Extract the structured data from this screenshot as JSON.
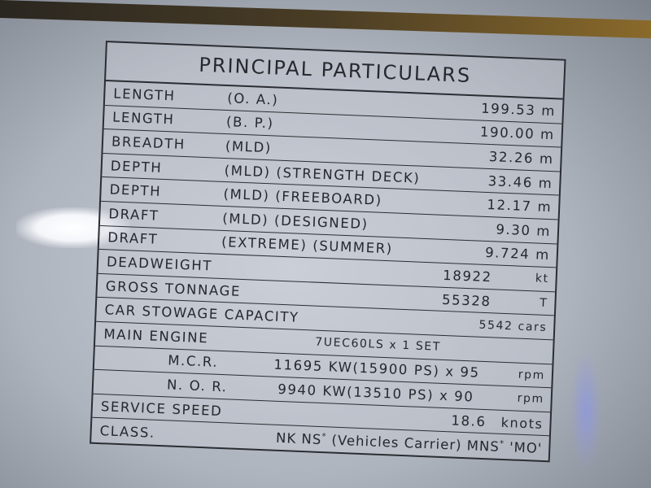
{
  "title": "PRINCIPAL PARTICULARS",
  "rows": [
    {
      "label": "LENGTH",
      "qualifier": "(O. A.)",
      "value": "199.53 m"
    },
    {
      "label": "LENGTH",
      "qualifier": "(B. P.)",
      "value": "190.00 m"
    },
    {
      "label": "BREADTH",
      "qualifier": "(MLD)",
      "value": "32.26 m"
    },
    {
      "label": "DEPTH",
      "qualifier": "(MLD) (STRENGTH DECK)",
      "value": "33.46 m"
    },
    {
      "label": "DEPTH",
      "qualifier": "(MLD) (FREEBOARD)",
      "value": "12.17 m"
    },
    {
      "label": "DRAFT",
      "qualifier": "(MLD) (DESIGNED)",
      "value": "9.30 m"
    },
    {
      "label": "DRAFT",
      "qualifier": "(EXTREME) (SUMMER)",
      "value": "9.724 m"
    }
  ],
  "deadweight": {
    "label": "DEADWEIGHT",
    "value": "18922",
    "unit": "kt"
  },
  "gross_tonnage": {
    "label": "GROSS TONNAGE",
    "value": "55328",
    "unit": "T"
  },
  "car_stowage": {
    "label": "CAR STOWAGE CAPACITY",
    "value": "5542 cars"
  },
  "main_engine": {
    "label": "MAIN ENGINE",
    "value": "7UEC60LS x 1 SET"
  },
  "mcr": {
    "label": "M.C.R.",
    "value": "11695 KW(15900 PS) x 95",
    "unit": "rpm"
  },
  "nor": {
    "label": "N. O. R.",
    "value": "9940 KW(13510 PS) x 90",
    "unit": "rpm"
  },
  "service_speed": {
    "label": "SERVICE SPEED",
    "value": "18.6",
    "unit": "knots"
  },
  "class": {
    "label": "CLASS.",
    "value_a": "NK NS",
    "sup_a": "*",
    "value_b": "(Vehicles Carrier) MNS",
    "sup_b": "*",
    "value_c": "'MO'"
  }
}
